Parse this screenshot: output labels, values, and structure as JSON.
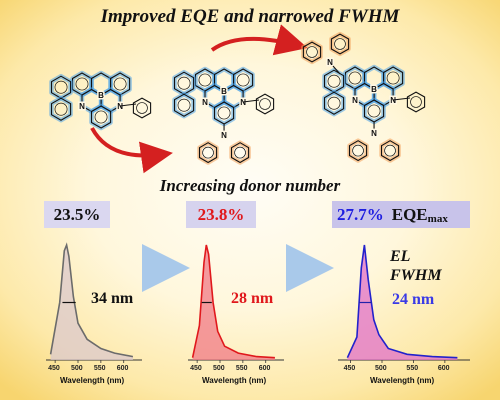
{
  "title": "Improved EQE and narrowed FWHM",
  "subtitle": "Increasing donor number",
  "eqe": [
    "23.5%",
    "23.8%",
    "27.7%"
  ],
  "eqe_label_main": "EQE",
  "eqe_label_sub": "max",
  "el_line1": "EL",
  "el_line2": "FWHM",
  "fwhm": [
    "34 nm",
    "28 nm",
    "24 nm"
  ],
  "molecules": {
    "atoms": {
      "boron": "B",
      "nitrogen": "N"
    }
  },
  "spectra_axis": {
    "ticks": [
      "450",
      "500",
      "550",
      "600"
    ],
    "xlabel": "Wavelength (nm)"
  },
  "colors": {
    "spectrum1": "#6b6b6b",
    "spectrum2": "#e0181c",
    "spectrum3": "#2222cc",
    "donor_highlight": "#f2a15a",
    "core_highlight": "#5aa9e6"
  },
  "chart_data": [
    {
      "type": "line",
      "x": [
        440,
        460,
        470,
        475,
        480,
        490,
        500,
        520,
        550,
        580,
        620
      ],
      "y": [
        0.05,
        0.5,
        0.95,
        1.0,
        0.9,
        0.55,
        0.32,
        0.18,
        0.1,
        0.06,
        0.03
      ],
      "xlabel": "Wavelength (nm)",
      "xlim": [
        430,
        640
      ],
      "color": "#6b6b6b"
    },
    {
      "type": "line",
      "x": [
        440,
        455,
        465,
        470,
        475,
        485,
        495,
        510,
        540,
        580,
        620
      ],
      "y": [
        0.02,
        0.3,
        0.85,
        1.0,
        0.92,
        0.5,
        0.25,
        0.12,
        0.06,
        0.03,
        0.02
      ],
      "xlabel": "Wavelength (nm)",
      "xlim": [
        430,
        640
      ],
      "color": "#e0181c"
    },
    {
      "type": "line",
      "x": [
        445,
        460,
        467,
        472,
        478,
        487,
        495,
        510,
        540,
        580,
        620
      ],
      "y": [
        0.02,
        0.2,
        0.8,
        1.0,
        0.7,
        0.35,
        0.22,
        0.1,
        0.05,
        0.03,
        0.02
      ],
      "xlabel": "Wavelength (nm)",
      "xlim": [
        430,
        640
      ],
      "color": "#2222cc"
    }
  ]
}
